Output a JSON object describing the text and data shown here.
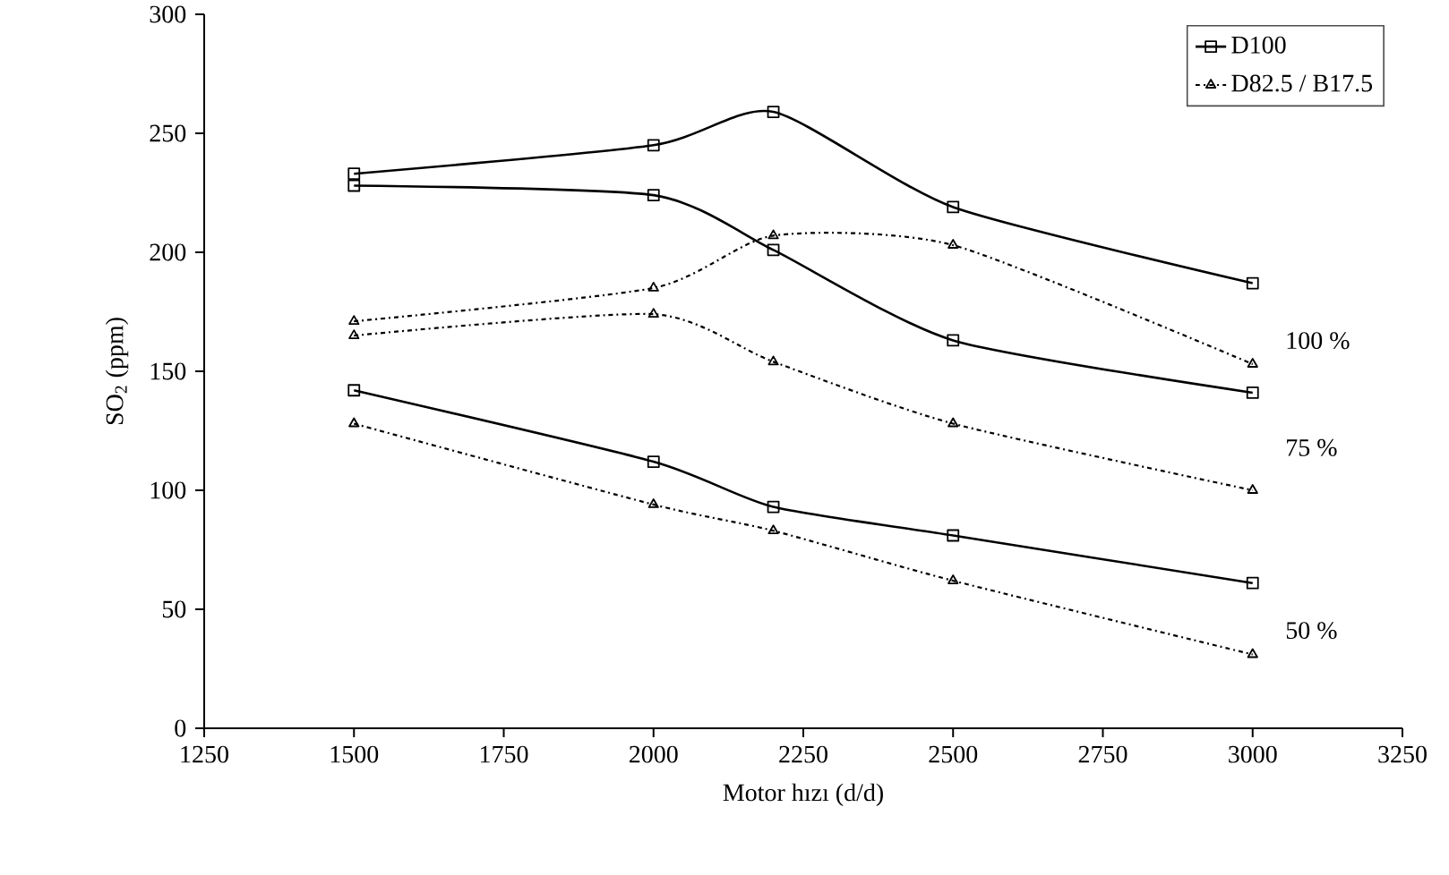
{
  "chart_data": {
    "type": "line",
    "xlabel": "Motor hızı (d/d)",
    "ylabel": "SO$_{2}$ (ppm)",
    "x": [
      1500,
      2000,
      2200,
      2500,
      3000
    ],
    "series": [
      {
        "name": "D100",
        "color": "#000000",
        "marker": "square",
        "line_style": "solid",
        "values": [
          233,
          245,
          259,
          219,
          187
        ]
      },
      {
        "color": "#000000",
        "marker": "square",
        "line_style": "solid",
        "values": [
          228,
          224,
          201,
          163,
          141
        ]
      },
      {
        "color": "#000000",
        "marker": "square",
        "line_style": "solid",
        "values": [
          142,
          112,
          93,
          81,
          61
        ]
      },
      {
        "name": "D82.5 / B17.5",
        "color": "#000000",
        "marker": "triangle",
        "line_style": "dashed",
        "values": [
          171,
          185,
          207,
          203,
          153
        ]
      },
      {
        "color": "#000000",
        "marker": "triangle",
        "line_style": "dashed",
        "values": [
          165,
          174,
          154,
          128,
          100
        ]
      },
      {
        "color": "#000000",
        "marker": "triangle",
        "line_style": "dashed",
        "values": [
          128,
          94,
          83,
          62,
          31
        ]
      }
    ],
    "annotations": [
      "100 %",
      "75 %",
      "50 %"
    ],
    "xlim": [
      1250,
      3250
    ],
    "xticks": [
      1250,
      1500,
      1750,
      2000,
      2250,
      2500,
      2750,
      3000,
      3250
    ],
    "ylim": [
      0,
      300
    ],
    "yticks": [
      0,
      50,
      100,
      150,
      200,
      250,
      300
    ],
    "grid": false,
    "legend": "top right"
  }
}
